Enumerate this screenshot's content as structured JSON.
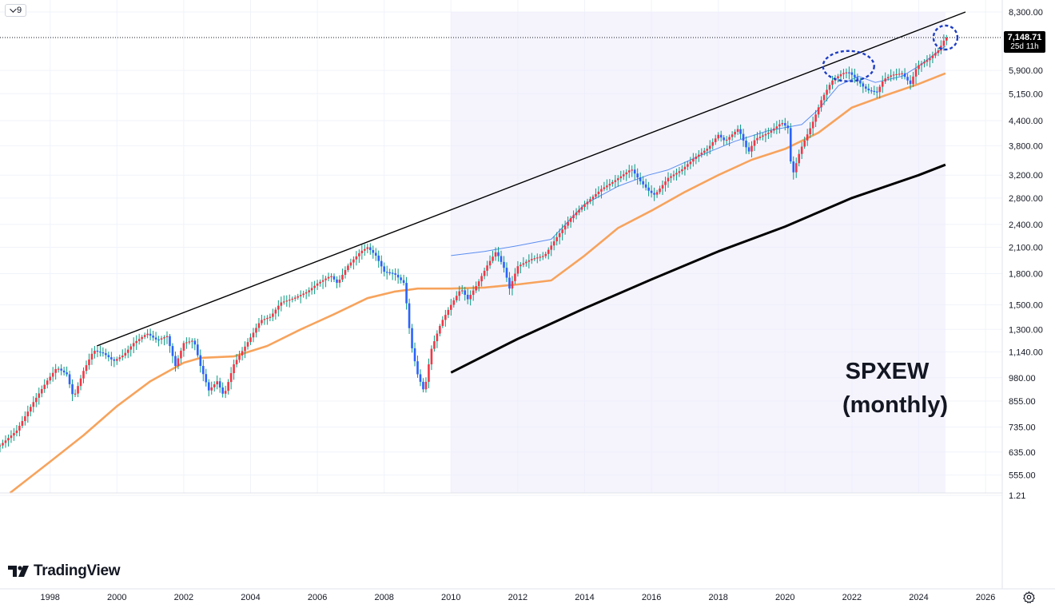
{
  "toolbar": {
    "interval_label": "9",
    "interval_icon": "chevron-down-icon"
  },
  "price_tag": {
    "price": "7,148.71",
    "countdown": "25d 11h",
    "color": "#000000"
  },
  "annotation": {
    "line1": "SPXEW",
    "line2": "(monthly)"
  },
  "branding": {
    "logo_text": "TradingView",
    "logo_icon": "tradingview-logo-icon"
  },
  "settings_icon": "gear-icon",
  "colors": {
    "up_candle": "#f23645",
    "down_candle": "#2962ff",
    "wick": "#089981",
    "long_ma": "#f7a35c",
    "short_ma": "#5b8def",
    "trendline": "#000000",
    "shade": "#ecebfb",
    "circle": "#1e3ec4"
  },
  "chart_data": {
    "type": "candlestick",
    "title": "SPXEW",
    "subtitle": "(monthly)",
    "y_scale": "log",
    "ylim": [
      500,
      8300
    ],
    "xlim": [
      1996.5,
      2026.5
    ],
    "y_ticks": [
      "8,300.00",
      "7,148.71",
      "5,900.00",
      "5,150.00",
      "4,400.00",
      "3,800.00",
      "3,200.00",
      "2,800.00",
      "2,400.00",
      "2,100.00",
      "1,800.00",
      "1,500.00",
      "1,300.00",
      "1,140.00",
      "980.00",
      "855.00",
      "735.00",
      "635.00",
      "555.00",
      "1.21"
    ],
    "x_ticks": [
      "1998",
      "2000",
      "2002",
      "2004",
      "2006",
      "2008",
      "2010",
      "2012",
      "2014",
      "2016",
      "2018",
      "2020",
      "2022",
      "2024",
      "2026"
    ],
    "last_price": 7148.71,
    "price_path": [
      [
        1996.5,
        660
      ],
      [
        1997.0,
        720
      ],
      [
        1997.5,
        850
      ],
      [
        1997.9,
        960
      ],
      [
        1998.2,
        1040
      ],
      [
        1998.5,
        1000
      ],
      [
        1998.7,
        870
      ],
      [
        1999.0,
        1020
      ],
      [
        1999.3,
        1150
      ],
      [
        1999.6,
        1130
      ],
      [
        1999.9,
        1080
      ],
      [
        2000.2,
        1120
      ],
      [
        2000.5,
        1200
      ],
      [
        2000.9,
        1270
      ],
      [
        2001.2,
        1220
      ],
      [
        2001.5,
        1250
      ],
      [
        2001.75,
        1050
      ],
      [
        2002.0,
        1200
      ],
      [
        2002.3,
        1220
      ],
      [
        2002.5,
        1050
      ],
      [
        2002.75,
        910
      ],
      [
        2003.0,
        960
      ],
      [
        2003.2,
        880
      ],
      [
        2003.5,
        1060
      ],
      [
        2003.9,
        1200
      ],
      [
        2004.3,
        1370
      ],
      [
        2004.6,
        1400
      ],
      [
        2004.9,
        1520
      ],
      [
        2005.3,
        1560
      ],
      [
        2005.7,
        1620
      ],
      [
        2006.0,
        1700
      ],
      [
        2006.4,
        1780
      ],
      [
        2006.6,
        1700
      ],
      [
        2006.9,
        1880
      ],
      [
        2007.3,
        2050
      ],
      [
        2007.5,
        2100
      ],
      [
        2007.75,
        2000
      ],
      [
        2008.0,
        1820
      ],
      [
        2008.3,
        1800
      ],
      [
        2008.6,
        1700
      ],
      [
        2008.8,
        1200
      ],
      [
        2009.0,
        1000
      ],
      [
        2009.2,
        900
      ],
      [
        2009.4,
        1150
      ],
      [
        2009.7,
        1350
      ],
      [
        2010.0,
        1500
      ],
      [
        2010.3,
        1650
      ],
      [
        2010.5,
        1550
      ],
      [
        2010.8,
        1700
      ],
      [
        2011.1,
        1900
      ],
      [
        2011.35,
        2050
      ],
      [
        2011.6,
        1850
      ],
      [
        2011.75,
        1650
      ],
      [
        2012.0,
        1880
      ],
      [
        2012.4,
        1960
      ],
      [
        2012.8,
        2000
      ],
      [
        2013.2,
        2250
      ],
      [
        2013.6,
        2500
      ],
      [
        2014.0,
        2700
      ],
      [
        2014.5,
        2950
      ],
      [
        2014.9,
        3100
      ],
      [
        2015.4,
        3320
      ],
      [
        2015.65,
        3100
      ],
      [
        2015.95,
        2900
      ],
      [
        2016.1,
        2850
      ],
      [
        2016.5,
        3150
      ],
      [
        2016.9,
        3300
      ],
      [
        2017.3,
        3550
      ],
      [
        2017.7,
        3750
      ],
      [
        2018.0,
        4050
      ],
      [
        2018.2,
        3900
      ],
      [
        2018.6,
        4200
      ],
      [
        2018.9,
        3650
      ],
      [
        2019.1,
        3950
      ],
      [
        2019.5,
        4100
      ],
      [
        2019.9,
        4350
      ],
      [
        2020.1,
        4200
      ],
      [
        2020.2,
        3150
      ],
      [
        2020.45,
        3700
      ],
      [
        2020.8,
        4300
      ],
      [
        2021.1,
        5000
      ],
      [
        2021.4,
        5550
      ],
      [
        2021.7,
        5800
      ],
      [
        2021.9,
        5850
      ],
      [
        2022.1,
        5650
      ],
      [
        2022.35,
        5350
      ],
      [
        2022.5,
        5250
      ],
      [
        2022.75,
        5200
      ],
      [
        2022.95,
        5600
      ],
      [
        2023.2,
        5750
      ],
      [
        2023.5,
        5800
      ],
      [
        2023.75,
        5450
      ],
      [
        2023.95,
        6050
      ],
      [
        2024.3,
        6300
      ],
      [
        2024.6,
        6650
      ],
      [
        2024.8,
        7148.71
      ]
    ],
    "series": [
      {
        "name": "",
        "type": "moving_average_long",
        "points": [
          [
            1996.8,
            500
          ],
          [
            1998.0,
            600
          ],
          [
            1999.0,
            700
          ],
          [
            2000.0,
            830
          ],
          [
            2001.0,
            960
          ],
          [
            2002.0,
            1070
          ],
          [
            2002.5,
            1100
          ],
          [
            2003.5,
            1110
          ],
          [
            2004.5,
            1180
          ],
          [
            2005.5,
            1300
          ],
          [
            2006.5,
            1420
          ],
          [
            2007.5,
            1560
          ],
          [
            2008.3,
            1620
          ],
          [
            2009.0,
            1650
          ],
          [
            2010.0,
            1650
          ],
          [
            2011.0,
            1660
          ],
          [
            2012.0,
            1690
          ],
          [
            2013.0,
            1730
          ],
          [
            2014.0,
            2000
          ],
          [
            2015.0,
            2350
          ],
          [
            2016.0,
            2600
          ],
          [
            2017.0,
            2900
          ],
          [
            2018.0,
            3200
          ],
          [
            2019.0,
            3500
          ],
          [
            2020.0,
            3730
          ],
          [
            2021.0,
            4100
          ],
          [
            2022.0,
            4750
          ],
          [
            2023.0,
            5100
          ],
          [
            2024.0,
            5450
          ],
          [
            2024.8,
            5800
          ]
        ]
      },
      {
        "name": "",
        "type": "moving_average_short",
        "points": [
          [
            2010.0,
            2000
          ],
          [
            2011.0,
            2050
          ],
          [
            2012.0,
            2120
          ],
          [
            2013.0,
            2200
          ],
          [
            2014.0,
            2700
          ],
          [
            2015.0,
            3000
          ],
          [
            2015.9,
            3200
          ],
          [
            2016.5,
            3300
          ],
          [
            2017.5,
            3600
          ],
          [
            2018.5,
            3900
          ],
          [
            2019.5,
            4150
          ],
          [
            2020.5,
            4300
          ],
          [
            2021.0,
            4700
          ],
          [
            2021.6,
            5400
          ],
          [
            2022.2,
            5700
          ],
          [
            2022.7,
            5500
          ],
          [
            2023.5,
            5700
          ],
          [
            2024.0,
            6050
          ],
          [
            2024.8,
            6800
          ]
        ]
      },
      {
        "name": "",
        "type": "lower_channel_line",
        "points": [
          [
            2010.0,
            1010
          ],
          [
            2012.0,
            1230
          ],
          [
            2014.0,
            1470
          ],
          [
            2016.0,
            1740
          ],
          [
            2018.0,
            2050
          ],
          [
            2020.0,
            2370
          ],
          [
            2022.0,
            2800
          ],
          [
            2024.0,
            3200
          ],
          [
            2024.8,
            3400
          ]
        ]
      },
      {
        "name": "",
        "type": "upper_trendline",
        "points": [
          [
            1999.4,
            1180
          ],
          [
            2025.4,
            8300
          ]
        ]
      }
    ],
    "shaded_region": {
      "x_range": [
        2010.0,
        2024.8
      ]
    },
    "highlight_circles": [
      {
        "x": 2021.9,
        "y": 6050
      },
      {
        "x": 2024.8,
        "y": 7148.71
      }
    ],
    "grid": true,
    "legend": "none"
  }
}
